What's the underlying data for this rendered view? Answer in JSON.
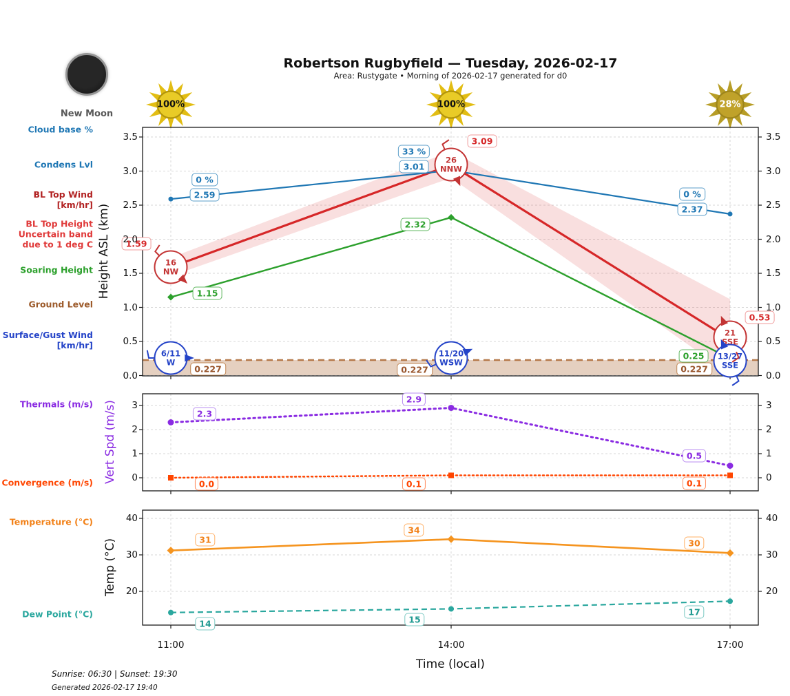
{
  "header": {
    "title": "Robertson Rugbyfield — Tuesday, 2026-02-17",
    "subtitle": "Area: Rustygate • Morning of 2026-02-17 generated for d0"
  },
  "moon": {
    "phase_label": "New Moon"
  },
  "suns": [
    {
      "percent": "100%",
      "bright": true
    },
    {
      "percent": "100%",
      "bright": true
    },
    {
      "percent": "28%",
      "bright": false
    }
  ],
  "left_labels": [
    {
      "text": "Cloud base %",
      "color": "#1f77b4"
    },
    {
      "text": "Condens Lvl",
      "color": "#1f77b4"
    },
    {
      "text": "BL Top Wind\n[km/hr]",
      "color": "#b22222"
    },
    {
      "text": "BL Top Height\nUncertain band\ndue to 1 deg C",
      "color": "#e03a3a"
    },
    {
      "text": "Soaring Height",
      "color": "#2ca02c"
    },
    {
      "text": "Ground Level",
      "color": "#9c5a2a"
    },
    {
      "text": "Surface/Gust Wind\n[km/hr]",
      "color": "#2544c8"
    },
    {
      "text": "Thermals (m/s)",
      "color": "#8a2be2"
    },
    {
      "text": "Convergence (m/s)",
      "color": "#ff4500"
    },
    {
      "text": "Temperature (°C)",
      "color": "#f28118"
    },
    {
      "text": "Dew Point (°C)",
      "color": "#2aa79e"
    }
  ],
  "axes": {
    "x_ticks": [
      "11:00",
      "14:00",
      "17:00"
    ],
    "x_label": "Time (local)",
    "chart1": {
      "y_label": "Height ASL (km)",
      "y_ticks": [
        "0.0",
        "0.5",
        "1.0",
        "1.5",
        "2.0",
        "2.5",
        "3.0",
        "3.5"
      ]
    },
    "chart2": {
      "y_label": "Vert Spd (m/s)",
      "y_ticks": [
        "0",
        "1",
        "2",
        "3"
      ]
    },
    "chart3": {
      "y_label": "Temp (°C)",
      "y_ticks": [
        "20",
        "30",
        "40"
      ]
    }
  },
  "chart_data": [
    {
      "type": "line",
      "x": [
        "11:00",
        "14:00",
        "17:00"
      ],
      "ylabel": "Height ASL (km)",
      "ylim": [
        0.0,
        3.64
      ],
      "series": [
        {
          "name": "Condens Lvl",
          "color": "#1f77b4",
          "values": [
            2.59,
            3.01,
            2.37
          ],
          "labels": [
            "2.59",
            "3.01",
            "2.37"
          ],
          "cloud_base_pct_labels": [
            "0 %",
            "33 %",
            "0 %"
          ]
        },
        {
          "name": "BL Top Height",
          "color": "#d62728",
          "values": [
            1.59,
            3.09,
            0.53
          ],
          "labels": [
            "1.59",
            "3.09",
            "0.53"
          ],
          "band_upper": [
            1.73,
            3.29,
            1.12
          ],
          "band_lower": [
            1.46,
            2.9,
            0.02
          ]
        },
        {
          "name": "Soaring Height",
          "color": "#2ca02c",
          "values": [
            1.15,
            2.32,
            0.25
          ],
          "labels": [
            "1.15",
            "2.32",
            "0.25"
          ]
        },
        {
          "name": "Ground Level",
          "color": "#b5794a",
          "values": [
            0.227,
            0.227,
            0.227
          ],
          "labels": [
            "0.227",
            "0.227",
            "0.227"
          ]
        }
      ],
      "winds_aloft": [
        {
          "speed": "16",
          "dir": "NW"
        },
        {
          "speed": "26",
          "dir": "NNW"
        },
        {
          "speed": "21",
          "dir": "SSE"
        }
      ],
      "surface_winds": [
        {
          "speed": "6/11",
          "dir": "W"
        },
        {
          "speed": "11/20",
          "dir": "WSW"
        },
        {
          "speed": "13/27",
          "dir": "SSE"
        }
      ]
    },
    {
      "type": "line",
      "x": [
        "11:00",
        "14:00",
        "17:00"
      ],
      "ylabel": "Vert Spd (m/s)",
      "ylim": [
        -0.6,
        3.5
      ],
      "series": [
        {
          "name": "Thermals (m/s)",
          "color": "#8a2be2",
          "values": [
            2.3,
            2.9,
            0.5
          ],
          "labels": [
            "2.3",
            "2.9",
            "0.5"
          ]
        },
        {
          "name": "Convergence (m/s)",
          "color": "#ff4500",
          "values": [
            0.0,
            0.1,
            0.1
          ],
          "labels": [
            "0.0",
            "0.1",
            "0.1"
          ]
        }
      ]
    },
    {
      "type": "line",
      "x": [
        "11:00",
        "14:00",
        "17:00"
      ],
      "ylabel": "Temp (°C)",
      "ylim": [
        11,
        42.5
      ],
      "series": [
        {
          "name": "Temperature (°C)",
          "color": "#f5941f",
          "values": [
            31.2,
            34.3,
            30.5
          ],
          "labels": [
            "31",
            "34",
            "30"
          ]
        },
        {
          "name": "Dew Point (°C)",
          "color": "#2aa79e",
          "values": [
            14.2,
            15.2,
            17.3
          ],
          "labels": [
            "14",
            "15",
            "17"
          ]
        }
      ]
    }
  ],
  "footer": {
    "sun_times": "Sunrise: 06:30 | Sunset: 19:30",
    "generated": "Generated 2026-02-17 19:40"
  }
}
